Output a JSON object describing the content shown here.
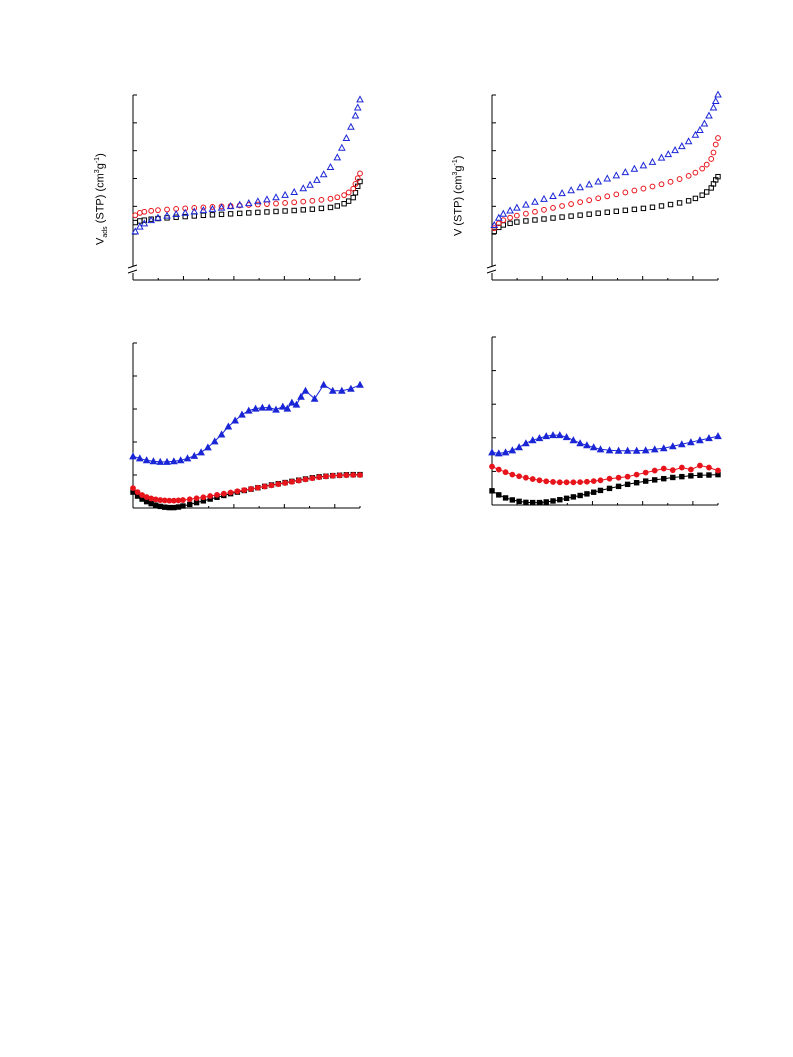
{
  "labels": {
    "left_top_ylabel_main": "V",
    "left_top_ylabel_sub": "ads",
    "left_top_ylabel_rest": " (STP) (cm",
    "left_top_ylabel_sup1": "3",
    "left_top_ylabel_mid": "g",
    "left_top_ylabel_sup2": "-1",
    "left_top_ylabel_end": ")",
    "right_top_ylabel_main": "V (STP) (cm",
    "right_top_ylabel_sup1": "3",
    "right_top_ylabel_mid": "g",
    "right_top_ylabel_sup2": "-1",
    "right_top_ylabel_end": ")"
  },
  "colors": {
    "black": "#000000",
    "red": "#e8141c",
    "blue": "#1a26d6"
  },
  "chart_data": [
    {
      "type": "scatter",
      "xlim": [
        0,
        1
      ],
      "ylim": [
        0,
        10
      ],
      "axis_break": true,
      "grid": false,
      "series": [
        {
          "color": "black",
          "marker": "square",
          "x": [
            0.01,
            0.03,
            0.05,
            0.08,
            0.11,
            0.15,
            0.19,
            0.23,
            0.27,
            0.31,
            0.35,
            0.39,
            0.43,
            0.47,
            0.51,
            0.55,
            0.59,
            0.63,
            0.67,
            0.71,
            0.75,
            0.79,
            0.83,
            0.87,
            0.9,
            0.93,
            0.95,
            0.97,
            0.98,
            0.99,
            1.0
          ],
          "y": [
            2.45,
            2.55,
            2.6,
            2.66,
            2.7,
            2.74,
            2.78,
            2.82,
            2.86,
            2.9,
            2.93,
            2.96,
            2.99,
            3.02,
            3.05,
            3.08,
            3.11,
            3.14,
            3.17,
            3.2,
            3.24,
            3.28,
            3.33,
            3.39,
            3.48,
            3.62,
            3.78,
            4.0,
            4.3,
            4.7,
            5.0
          ]
        },
        {
          "color": "red",
          "marker": "circle",
          "x": [
            0.01,
            0.03,
            0.05,
            0.08,
            0.11,
            0.15,
            0.19,
            0.23,
            0.27,
            0.31,
            0.35,
            0.39,
            0.43,
            0.47,
            0.51,
            0.55,
            0.59,
            0.63,
            0.67,
            0.71,
            0.75,
            0.79,
            0.83,
            0.87,
            0.9,
            0.93,
            0.95,
            0.97,
            0.98,
            0.99,
            1.0
          ],
          "y": [
            2.9,
            3.05,
            3.12,
            3.18,
            3.22,
            3.26,
            3.3,
            3.33,
            3.36,
            3.39,
            3.42,
            3.45,
            3.48,
            3.51,
            3.54,
            3.57,
            3.6,
            3.63,
            3.67,
            3.71,
            3.75,
            3.8,
            3.86,
            3.93,
            4.02,
            4.15,
            4.32,
            4.55,
            4.85,
            5.2,
            5.5
          ]
        },
        {
          "color": "blue",
          "marker": "triangle",
          "x": [
            0.01,
            0.03,
            0.05,
            0.08,
            0.11,
            0.15,
            0.19,
            0.23,
            0.27,
            0.31,
            0.35,
            0.39,
            0.43,
            0.47,
            0.51,
            0.55,
            0.59,
            0.63,
            0.67,
            0.71,
            0.75,
            0.78,
            0.81,
            0.84,
            0.87,
            0.9,
            0.92,
            0.94,
            0.96,
            0.98,
            0.99,
            1.0
          ],
          "y": [
            1.9,
            2.2,
            2.4,
            2.6,
            2.75,
            2.88,
            2.98,
            3.06,
            3.14,
            3.22,
            3.3,
            3.38,
            3.47,
            3.56,
            3.66,
            3.77,
            3.89,
            4.02,
            4.17,
            4.35,
            4.58,
            4.8,
            5.1,
            5.45,
            5.9,
            6.5,
            7.1,
            7.7,
            8.4,
            9.1,
            9.6,
            10.1
          ]
        }
      ]
    },
    {
      "type": "scatter",
      "xlim": [
        0,
        1
      ],
      "ylim": [
        0,
        10
      ],
      "axis_break": true,
      "grid": false,
      "series": [
        {
          "color": "black",
          "marker": "square",
          "x": [
            0.01,
            0.03,
            0.05,
            0.08,
            0.11,
            0.15,
            0.19,
            0.23,
            0.27,
            0.31,
            0.35,
            0.39,
            0.43,
            0.47,
            0.51,
            0.55,
            0.59,
            0.63,
            0.67,
            0.71,
            0.75,
            0.79,
            0.83,
            0.87,
            0.9,
            0.93,
            0.95,
            0.97,
            0.98,
            0.99,
            1.0
          ],
          "y": [
            1.9,
            2.15,
            2.3,
            2.4,
            2.48,
            2.55,
            2.61,
            2.67,
            2.73,
            2.79,
            2.85,
            2.91,
            2.97,
            3.03,
            3.09,
            3.15,
            3.21,
            3.27,
            3.33,
            3.4,
            3.48,
            3.57,
            3.67,
            3.8,
            3.95,
            4.15,
            4.35,
            4.6,
            4.85,
            5.1,
            5.3
          ]
        },
        {
          "color": "red",
          "marker": "circle",
          "x": [
            0.01,
            0.03,
            0.05,
            0.08,
            0.11,
            0.15,
            0.19,
            0.23,
            0.27,
            0.31,
            0.35,
            0.39,
            0.43,
            0.47,
            0.51,
            0.55,
            0.59,
            0.63,
            0.67,
            0.71,
            0.75,
            0.79,
            0.83,
            0.87,
            0.9,
            0.93,
            0.95,
            0.97,
            0.98,
            0.99,
            1.0
          ],
          "y": [
            2.1,
            2.4,
            2.6,
            2.75,
            2.88,
            3.0,
            3.12,
            3.24,
            3.36,
            3.48,
            3.6,
            3.72,
            3.84,
            3.96,
            4.08,
            4.2,
            4.32,
            4.44,
            4.56,
            4.69,
            4.83,
            4.98,
            5.15,
            5.35,
            5.55,
            5.8,
            6.05,
            6.4,
            6.8,
            7.3,
            7.7
          ]
        },
        {
          "color": "blue",
          "marker": "triangle",
          "x": [
            0.01,
            0.03,
            0.05,
            0.08,
            0.11,
            0.15,
            0.19,
            0.23,
            0.27,
            0.31,
            0.35,
            0.39,
            0.43,
            0.47,
            0.51,
            0.55,
            0.59,
            0.63,
            0.67,
            0.71,
            0.75,
            0.78,
            0.81,
            0.84,
            0.87,
            0.9,
            0.92,
            0.94,
            0.96,
            0.98,
            0.99,
            1.0
          ],
          "y": [
            2.3,
            2.75,
            3.0,
            3.2,
            3.38,
            3.56,
            3.74,
            3.92,
            4.1,
            4.28,
            4.46,
            4.64,
            4.82,
            5.0,
            5.19,
            5.38,
            5.58,
            5.79,
            6.0,
            6.22,
            6.48,
            6.7,
            6.95,
            7.2,
            7.5,
            7.9,
            8.2,
            8.6,
            9.1,
            9.6,
            10.0,
            10.4
          ]
        }
      ]
    },
    {
      "type": "line",
      "xlim": [
        0,
        1
      ],
      "ylim": [
        0,
        8
      ],
      "grid": false,
      "series": [
        {
          "color": "black",
          "marker": "square",
          "x": [
            0.0,
            0.02,
            0.04,
            0.06,
            0.08,
            0.1,
            0.12,
            0.14,
            0.16,
            0.18,
            0.2,
            0.22,
            0.25,
            0.28,
            0.31,
            0.34,
            0.37,
            0.4,
            0.43,
            0.46,
            0.49,
            0.52,
            0.55,
            0.58,
            0.61,
            0.64,
            0.67,
            0.7,
            0.73,
            0.76,
            0.79,
            0.82,
            0.85,
            0.88,
            0.91,
            0.94,
            0.97,
            1.0
          ],
          "y": [
            0.8,
            0.6,
            0.45,
            0.32,
            0.22,
            0.14,
            0.08,
            0.04,
            0.02,
            0.02,
            0.05,
            0.1,
            0.18,
            0.27,
            0.36,
            0.45,
            0.54,
            0.63,
            0.72,
            0.8,
            0.88,
            0.95,
            1.02,
            1.09,
            1.16,
            1.22,
            1.28,
            1.34,
            1.4,
            1.46,
            1.52,
            1.57,
            1.6,
            1.63,
            1.65,
            1.67,
            1.68,
            1.68
          ]
        },
        {
          "color": "red",
          "marker": "circle",
          "x": [
            0.0,
            0.02,
            0.04,
            0.06,
            0.08,
            0.1,
            0.12,
            0.14,
            0.16,
            0.18,
            0.2,
            0.22,
            0.25,
            0.28,
            0.31,
            0.34,
            0.37,
            0.4,
            0.43,
            0.46,
            0.49,
            0.52,
            0.55,
            0.58,
            0.61,
            0.64,
            0.67,
            0.7,
            0.73,
            0.76,
            0.79,
            0.82,
            0.85,
            0.88,
            0.91,
            0.94,
            0.97,
            1.0
          ],
          "y": [
            1.0,
            0.8,
            0.65,
            0.55,
            0.48,
            0.43,
            0.4,
            0.38,
            0.37,
            0.37,
            0.38,
            0.4,
            0.44,
            0.49,
            0.54,
            0.6,
            0.66,
            0.72,
            0.78,
            0.84,
            0.9,
            0.96,
            1.02,
            1.08,
            1.14,
            1.2,
            1.26,
            1.32,
            1.38,
            1.44,
            1.5,
            1.55,
            1.59,
            1.62,
            1.64,
            1.65,
            1.66,
            1.66
          ]
        },
        {
          "color": "blue",
          "marker": "triangle",
          "x": [
            0.0,
            0.03,
            0.06,
            0.09,
            0.12,
            0.15,
            0.18,
            0.21,
            0.24,
            0.27,
            0.3,
            0.33,
            0.36,
            0.39,
            0.42,
            0.45,
            0.48,
            0.51,
            0.54,
            0.57,
            0.6,
            0.63,
            0.66,
            0.68,
            0.7,
            0.72,
            0.74,
            0.76,
            0.8,
            0.84,
            0.88,
            0.92,
            0.96,
            1.0
          ],
          "y": [
            2.6,
            2.5,
            2.4,
            2.35,
            2.32,
            2.32,
            2.35,
            2.4,
            2.5,
            2.62,
            2.8,
            3.05,
            3.35,
            3.7,
            4.1,
            4.4,
            4.7,
            4.9,
            5.0,
            5.05,
            5.05,
            4.95,
            5.1,
            5.0,
            5.3,
            5.2,
            5.6,
            5.9,
            5.5,
            6.2,
            5.9,
            5.9,
            6.0,
            6.2
          ]
        }
      ]
    },
    {
      "type": "line",
      "xlim": [
        0,
        1
      ],
      "ylim": [
        0,
        8
      ],
      "grid": false,
      "series": [
        {
          "color": "black",
          "marker": "square",
          "x": [
            0.0,
            0.03,
            0.06,
            0.09,
            0.12,
            0.15,
            0.18,
            0.21,
            0.24,
            0.27,
            0.3,
            0.33,
            0.36,
            0.39,
            0.42,
            0.45,
            0.48,
            0.52,
            0.56,
            0.6,
            0.64,
            0.68,
            0.72,
            0.76,
            0.8,
            0.84,
            0.88,
            0.92,
            0.96,
            1.0
          ],
          "y": [
            0.7,
            0.5,
            0.35,
            0.25,
            0.18,
            0.13,
            0.12,
            0.12,
            0.15,
            0.2,
            0.26,
            0.33,
            0.4,
            0.47,
            0.55,
            0.63,
            0.72,
            0.82,
            0.92,
            1.02,
            1.1,
            1.18,
            1.24,
            1.3,
            1.36,
            1.4,
            1.44,
            1.47,
            1.48,
            1.5
          ]
        },
        {
          "color": "red",
          "marker": "circle",
          "x": [
            0.0,
            0.03,
            0.06,
            0.09,
            0.12,
            0.15,
            0.18,
            0.21,
            0.24,
            0.27,
            0.3,
            0.33,
            0.36,
            0.39,
            0.42,
            0.45,
            0.48,
            0.52,
            0.56,
            0.6,
            0.64,
            0.68,
            0.72,
            0.76,
            0.8,
            0.84,
            0.88,
            0.92,
            0.96,
            1.0
          ],
          "y": [
            1.9,
            1.75,
            1.62,
            1.5,
            1.42,
            1.35,
            1.28,
            1.22,
            1.17,
            1.14,
            1.12,
            1.12,
            1.12,
            1.13,
            1.15,
            1.18,
            1.22,
            1.3,
            1.35,
            1.4,
            1.5,
            1.6,
            1.7,
            1.8,
            1.72,
            1.85,
            1.75,
            1.95,
            1.85,
            1.7
          ]
        },
        {
          "color": "blue",
          "marker": "triangle",
          "x": [
            0.0,
            0.03,
            0.06,
            0.09,
            0.12,
            0.15,
            0.18,
            0.21,
            0.24,
            0.27,
            0.3,
            0.33,
            0.36,
            0.39,
            0.42,
            0.45,
            0.48,
            0.52,
            0.56,
            0.6,
            0.64,
            0.68,
            0.72,
            0.76,
            0.8,
            0.84,
            0.88,
            0.92,
            0.96,
            1.0
          ],
          "y": [
            2.6,
            2.55,
            2.6,
            2.7,
            2.85,
            3.05,
            3.2,
            3.3,
            3.4,
            3.45,
            3.45,
            3.35,
            3.2,
            3.05,
            2.95,
            2.85,
            2.75,
            2.7,
            2.68,
            2.68,
            2.68,
            2.7,
            2.75,
            2.8,
            2.9,
            3.0,
            3.1,
            3.2,
            3.3,
            3.4
          ]
        }
      ]
    }
  ]
}
